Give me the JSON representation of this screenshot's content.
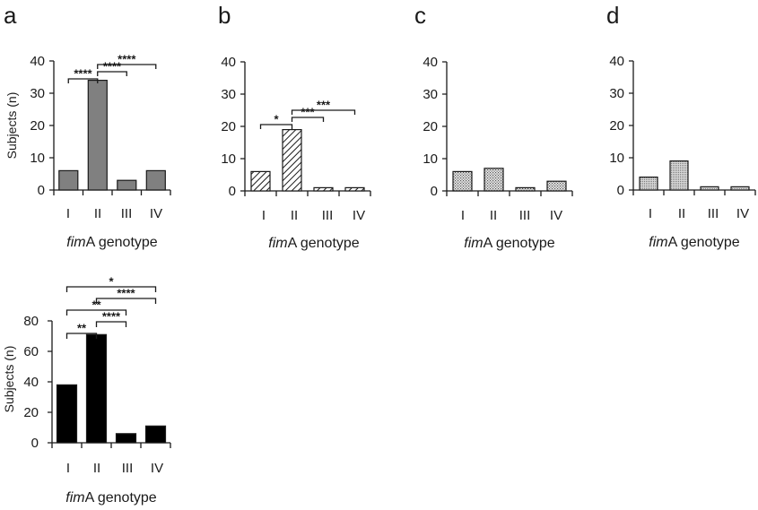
{
  "chart_data": [
    {
      "type": "bar",
      "panel": "a",
      "categories": [
        "I",
        "II",
        "III",
        "IV"
      ],
      "values": [
        6,
        34,
        3,
        6
      ],
      "ylabel": "Subjects (n)",
      "xlabel_prefix": "fim",
      "xlabel_rest": "A genotype",
      "ylim": [
        0,
        40
      ],
      "yticks": [
        "0",
        "10",
        "20",
        "30",
        "40"
      ],
      "bar_color": "#808080",
      "pattern": "solid",
      "significance": [
        {
          "from": 0,
          "to": 1,
          "label": "****"
        },
        {
          "from": 1,
          "to": 2,
          "label": "****"
        },
        {
          "from": 1,
          "to": 3,
          "label": "****"
        }
      ]
    },
    {
      "type": "bar",
      "panel": "b",
      "categories": [
        "I",
        "II",
        "III",
        "IV"
      ],
      "values": [
        6,
        19,
        1,
        1
      ],
      "ylabel": "",
      "xlabel_prefix": "fim",
      "xlabel_rest": "A genotype",
      "ylim": [
        0,
        40
      ],
      "yticks": [
        "0",
        "10",
        "20",
        "30",
        "40"
      ],
      "bar_color": "#1a1a1a",
      "pattern": "diagonal",
      "significance": [
        {
          "from": 0,
          "to": 1,
          "label": "*"
        },
        {
          "from": 1,
          "to": 2,
          "label": "***"
        },
        {
          "from": 1,
          "to": 3,
          "label": "***"
        }
      ]
    },
    {
      "type": "bar",
      "panel": "c",
      "categories": [
        "I",
        "II",
        "III",
        "IV"
      ],
      "values": [
        6,
        7,
        1,
        3
      ],
      "ylabel": "",
      "xlabel_prefix": "fim",
      "xlabel_rest": "A genotype",
      "ylim": [
        0,
        40
      ],
      "yticks": [
        "0",
        "10",
        "20",
        "30",
        "40"
      ],
      "bar_color": "#888888",
      "pattern": "dots",
      "significance": []
    },
    {
      "type": "bar",
      "panel": "d",
      "categories": [
        "I",
        "II",
        "III",
        "IV"
      ],
      "values": [
        4,
        9,
        1,
        1
      ],
      "ylabel": "",
      "xlabel_prefix": "fim",
      "xlabel_rest": "A genotype",
      "ylim": [
        0,
        40
      ],
      "yticks": [
        "0",
        "10",
        "20",
        "30",
        "40"
      ],
      "bar_color": "#999999",
      "pattern": "fine",
      "significance": []
    },
    {
      "type": "bar",
      "panel": "",
      "categories": [
        "I",
        "II",
        "III",
        "IV"
      ],
      "values": [
        38,
        71,
        6,
        11
      ],
      "ylabel": "Subjects (n)",
      "xlabel_prefix": "fim",
      "xlabel_rest": "A genotype",
      "ylim": [
        0,
        80
      ],
      "yticks": [
        "0",
        "20",
        "40",
        "60",
        "80"
      ],
      "bar_color": "#000000",
      "pattern": "solid",
      "significance": [
        {
          "from": 0,
          "to": 1,
          "label": "**"
        },
        {
          "from": 1,
          "to": 2,
          "label": "****"
        },
        {
          "from": 0,
          "to": 2,
          "label": "**"
        },
        {
          "from": 1,
          "to": 3,
          "label": "****"
        },
        {
          "from": 0,
          "to": 3,
          "label": "*"
        }
      ]
    }
  ]
}
